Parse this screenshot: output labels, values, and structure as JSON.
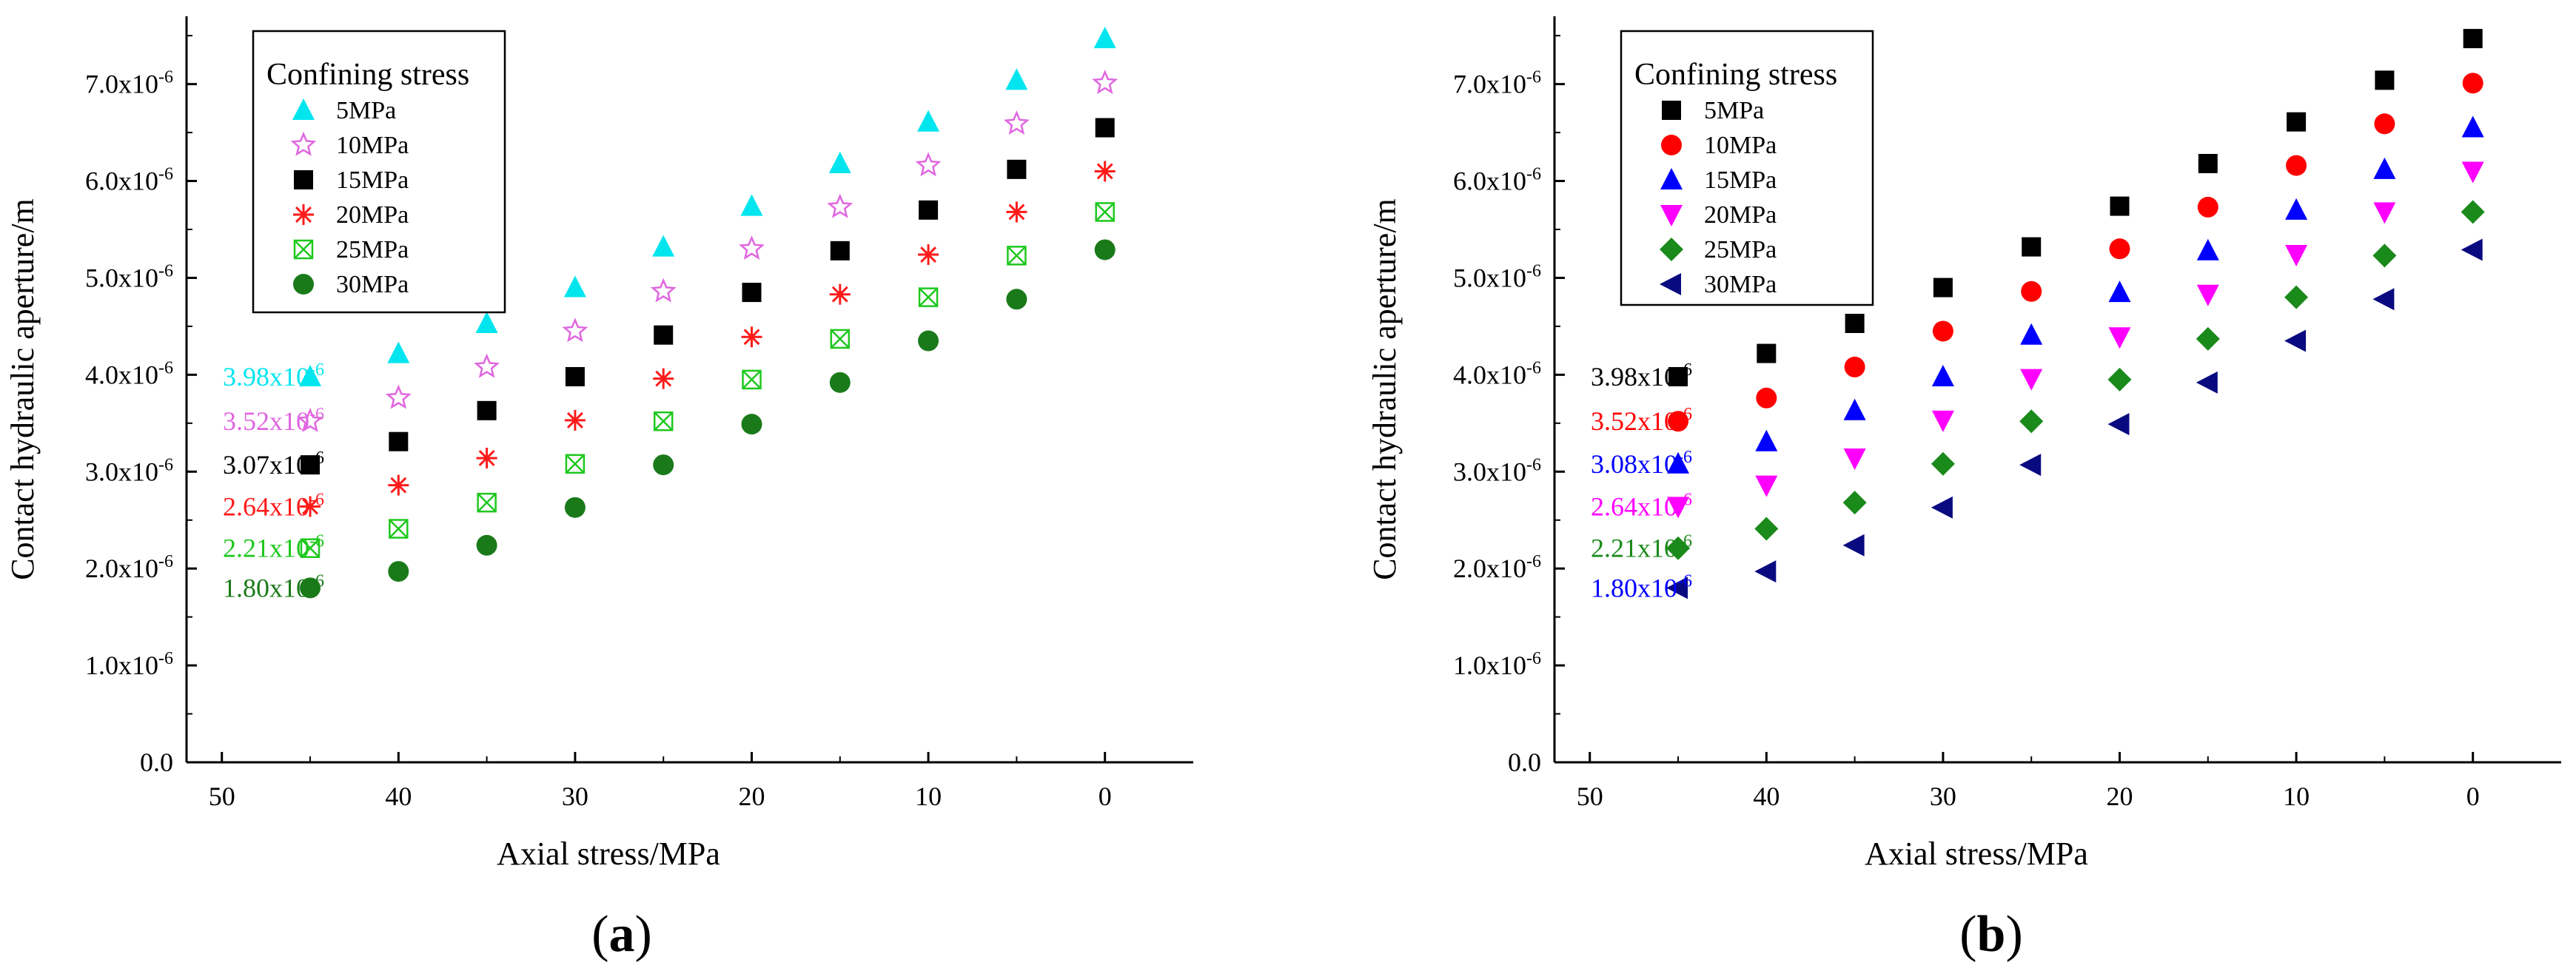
{
  "chart_data": [
    {
      "type": "scatter",
      "panel_label": "a",
      "xlabel": "Axial stress/MPa",
      "ylabel": "Contact hydraulic aperture/m",
      "xlim": [
        52,
        -5
      ],
      "ylim": [
        0,
        7.7
      ],
      "y_unit_exponent": -6,
      "x_ticks": [
        "50",
        "40",
        "30",
        "20",
        "10",
        "0"
      ],
      "y_ticks": [
        "0.0",
        "1.0x10",
        "2.0x10",
        "3.0x10",
        "4.0x10",
        "5.0x10",
        "6.0x10",
        "7.0x10"
      ],
      "legend_title": "Confining stress",
      "legend_position": "top-left",
      "x": [
        45,
        40,
        35,
        30,
        25,
        20,
        15,
        10,
        5,
        0
      ],
      "series": [
        {
          "name": "5MPa",
          "marker": "triangle-up",
          "color": "#00e5ee",
          "values": [
            3.98,
            4.22,
            4.53,
            4.9,
            5.32,
            5.74,
            6.18,
            6.61,
            7.04,
            7.47
          ]
        },
        {
          "name": "10MPa",
          "marker": "star-open",
          "color": "#e066e0",
          "values": [
            3.52,
            3.76,
            4.08,
            4.45,
            4.86,
            5.3,
            5.73,
            6.16,
            6.59,
            7.01
          ]
        },
        {
          "name": "15MPa",
          "marker": "square",
          "color": "#000000",
          "values": [
            3.07,
            3.31,
            3.63,
            3.98,
            4.41,
            4.85,
            5.28,
            5.7,
            6.12,
            6.55
          ]
        },
        {
          "name": "20MPa",
          "marker": "asterisk",
          "color": "#ff1a1a",
          "values": [
            2.64,
            2.86,
            3.14,
            3.53,
            3.96,
            4.39,
            4.83,
            5.24,
            5.68,
            6.1
          ]
        },
        {
          "name": "25MPa",
          "marker": "square-x",
          "color": "#1ec81e",
          "values": [
            2.21,
            2.41,
            2.68,
            3.08,
            3.52,
            3.95,
            4.37,
            4.8,
            5.23,
            5.68
          ]
        },
        {
          "name": "30MPa",
          "marker": "circle",
          "color": "#1a7a1a",
          "values": [
            1.8,
            1.97,
            2.24,
            2.63,
            3.07,
            3.49,
            3.92,
            4.35,
            4.78,
            5.29
          ]
        }
      ],
      "annotations": [
        {
          "text": "3.98x10",
          "exp": "-6",
          "value": 3.98,
          "color": "#00e5ee"
        },
        {
          "text": "3.52x10",
          "exp": "-6",
          "value": 3.52,
          "color": "#e066e0"
        },
        {
          "text": "3.07x10",
          "exp": "-6",
          "value": 3.07,
          "color": "#000000"
        },
        {
          "text": "2.64x10",
          "exp": "-6",
          "value": 2.64,
          "color": "#ff1a1a"
        },
        {
          "text": "2.21x10",
          "exp": "-6",
          "value": 2.21,
          "color": "#1ec81e"
        },
        {
          "text": "1.80x10",
          "exp": "-6",
          "value": 1.8,
          "color": "#1a7a1a"
        }
      ]
    },
    {
      "type": "scatter",
      "panel_label": "b",
      "xlabel": "Axial stress/MPa",
      "ylabel": "Contact hydraulic aperture/m",
      "xlim": [
        52,
        -5
      ],
      "ylim": [
        0,
        7.7
      ],
      "y_unit_exponent": -6,
      "x_ticks": [
        "50",
        "40",
        "30",
        "20",
        "10",
        "0"
      ],
      "y_ticks": [
        "0.0",
        "1.0x10",
        "2.0x10",
        "3.0x10",
        "4.0x10",
        "5.0x10",
        "6.0x10",
        "7.0x10"
      ],
      "legend_title": "Confining stress",
      "legend_position": "top-left",
      "x": [
        45,
        40,
        35,
        30,
        25,
        20,
        15,
        10,
        5,
        0
      ],
      "series": [
        {
          "name": "5MPa",
          "marker": "square",
          "color": "#000000",
          "values": [
            3.98,
            4.22,
            4.53,
            4.9,
            5.32,
            5.74,
            6.18,
            6.61,
            7.04,
            7.47
          ]
        },
        {
          "name": "10MPa",
          "marker": "circle",
          "color": "#ff0000",
          "values": [
            3.52,
            3.76,
            4.08,
            4.45,
            4.86,
            5.3,
            5.73,
            6.16,
            6.59,
            7.01
          ]
        },
        {
          "name": "15MPa",
          "marker": "triangle-up",
          "color": "#0000ff",
          "values": [
            3.08,
            3.31,
            3.63,
            3.98,
            4.41,
            4.85,
            5.28,
            5.7,
            6.12,
            6.55
          ]
        },
        {
          "name": "20MPa",
          "marker": "triangle-down",
          "color": "#ff00ff",
          "values": [
            2.64,
            2.86,
            3.14,
            3.53,
            3.96,
            4.39,
            4.83,
            5.24,
            5.68,
            6.1
          ]
        },
        {
          "name": "25MPa",
          "marker": "diamond",
          "color": "#1a8a1a",
          "values": [
            2.21,
            2.41,
            2.68,
            3.08,
            3.52,
            3.95,
            4.37,
            4.8,
            5.23,
            5.68
          ]
        },
        {
          "name": "30MPa",
          "marker": "triangle-left",
          "color": "#0a0a80",
          "values": [
            1.8,
            1.97,
            2.24,
            2.63,
            3.07,
            3.49,
            3.92,
            4.35,
            4.78,
            5.29
          ]
        }
      ],
      "annotations": [
        {
          "text": "3.98x10",
          "exp": "-6",
          "value": 3.98,
          "color": "#000000"
        },
        {
          "text": "3.52x10",
          "exp": "-6",
          "value": 3.52,
          "color": "#ff0000"
        },
        {
          "text": "3.08x10",
          "exp": "-6",
          "value": 3.08,
          "color": "#0000ff"
        },
        {
          "text": "2.64x10",
          "exp": "-6",
          "value": 2.64,
          "color": "#ff00ff"
        },
        {
          "text": "2.21x10",
          "exp": "-6",
          "value": 2.21,
          "color": "#1a8a1a"
        },
        {
          "text": "1.80x10",
          "exp": "-6",
          "value": 1.8,
          "color": "#0000ff"
        }
      ]
    }
  ]
}
